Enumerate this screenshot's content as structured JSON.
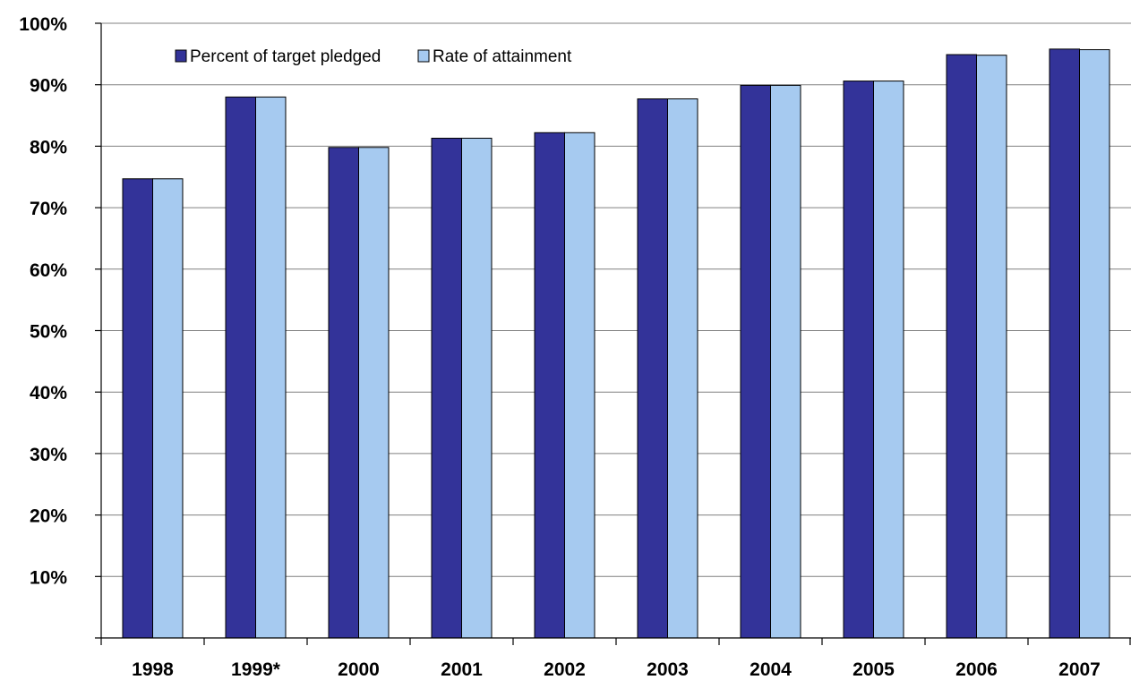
{
  "chart_data": {
    "type": "bar",
    "title": "",
    "xlabel": "",
    "ylabel": "",
    "categories": [
      "1998",
      "1999*",
      "2000",
      "2001",
      "2002",
      "2003",
      "2004",
      "2005",
      "2006",
      "2007"
    ],
    "series": [
      {
        "name": "Percent of target pledged",
        "color": "#333399",
        "values": [
          74.7,
          88.0,
          79.8,
          81.3,
          82.2,
          87.7,
          89.9,
          90.6,
          94.9,
          95.8
        ]
      },
      {
        "name": "Rate of attainment",
        "color": "#A6CAF0",
        "values": [
          74.7,
          88.0,
          79.8,
          81.3,
          82.2,
          87.7,
          89.9,
          90.6,
          94.8,
          95.7
        ]
      }
    ],
    "ylim": [
      0,
      100
    ],
    "yticks": [
      10,
      20,
      30,
      40,
      50,
      60,
      70,
      80,
      90,
      100
    ],
    "ytick_labels": [
      "10%",
      "20%",
      "30%",
      "40%",
      "50%",
      "60%",
      "70%",
      "80%",
      "90%",
      "100%"
    ],
    "grid": true,
    "legend_position": "top-left"
  }
}
